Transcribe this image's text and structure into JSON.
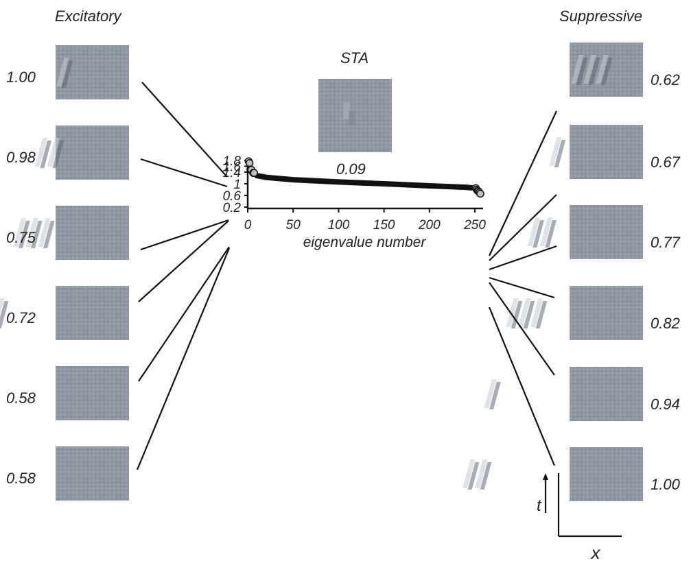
{
  "labels": {
    "excitatory": "Excitatory",
    "suppressive": "Suppressive",
    "sta": "STA",
    "sta_value": "0.09",
    "time_axis": "t",
    "space_axis": "x"
  },
  "excitatory_values": [
    "1.00",
    "0.98",
    "0.75",
    "0.72",
    "0.58",
    "0.58"
  ],
  "suppressive_values": [
    "0.62",
    "0.67",
    "0.77",
    "0.82",
    "0.94",
    "1.00"
  ],
  "chart_data": {
    "type": "scatter",
    "xlabel": "eigenvalue number",
    "ylabel": "",
    "xlim": [
      0,
      256
    ],
    "ylim": [
      0.2,
      1.8
    ],
    "xticks": [
      "0",
      "50",
      "100",
      "150",
      "200",
      "250"
    ],
    "yticks": [
      "0.2",
      "0.6",
      "1",
      "1.4",
      "1.6",
      "1.8"
    ],
    "series": [
      {
        "values": "eigenvalue spectrum (256 eigenvalues, decreasing)",
        "points": [
          [
            10,
            1.28
          ],
          [
            20,
            1.22
          ],
          [
            50,
            1.14
          ],
          [
            100,
            1.06
          ],
          [
            150,
            1.0
          ],
          [
            200,
            0.93
          ],
          [
            240,
            0.88
          ],
          [
            246,
            0.86
          ]
        ]
      },
      {
        "values": "significant excitatory eigenvalues",
        "points": [
          [
            1,
            1.77
          ],
          [
            2,
            1.71
          ],
          [
            3,
            1.49
          ],
          [
            4,
            1.48
          ],
          [
            6,
            1.37
          ],
          [
            7,
            1.37
          ]
        ]
      },
      {
        "values": "significant suppressive eigenvalues",
        "points": [
          [
            251,
            0.85
          ],
          [
            252,
            0.8
          ],
          [
            253,
            0.76
          ],
          [
            254,
            0.74
          ],
          [
            255,
            0.7
          ],
          [
            256,
            0.66
          ]
        ]
      }
    ],
    "grid": false,
    "colors": {
      "marker_fill": "#bfbfbf",
      "spectrum": "#111111"
    }
  }
}
